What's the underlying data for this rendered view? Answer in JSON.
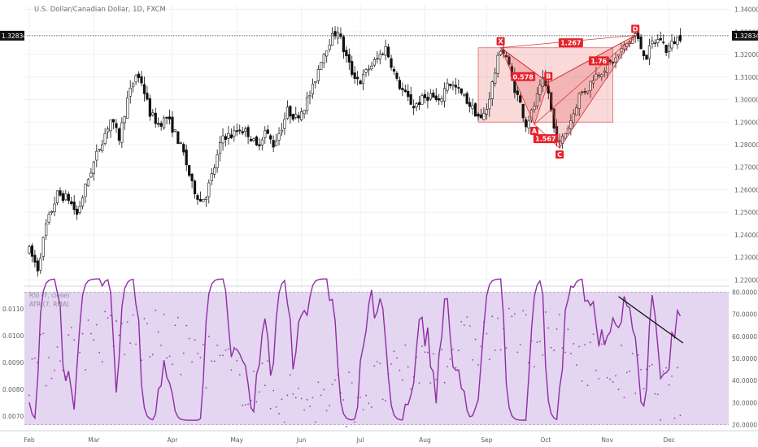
{
  "title": "U.S. Dollar/Canadian Dollar, 1D, FXCM",
  "chart_data": {
    "type": "candlestick",
    "symbol_title": "U.S. Dollar/Canadian Dollar, 1D, FXCM",
    "price_axis": {
      "ticks": [
        "1.34000",
        "1.33000",
        "1.32000",
        "1.31000",
        "1.30000",
        "1.29000",
        "1.28000",
        "1.27000",
        "1.26000",
        "1.25000",
        "1.24000",
        "1.23000",
        "1.22000"
      ],
      "ylim": [
        1.218,
        1.342
      ]
    },
    "last_price": "1.32834",
    "time_axis": [
      "Feb",
      "Mar",
      "Apr",
      "May",
      "Jun",
      "Jul",
      "Aug",
      "Sep",
      "Oct",
      "Nov",
      "Dec"
    ],
    "price_path": [
      [
        0,
        1.233
      ],
      [
        3,
        1.225
      ],
      [
        6,
        1.244
      ],
      [
        10,
        1.258
      ],
      [
        14,
        1.256
      ],
      [
        17,
        1.249
      ],
      [
        21,
        1.265
      ],
      [
        25,
        1.279
      ],
      [
        29,
        1.291
      ],
      [
        32,
        1.283
      ],
      [
        35,
        1.3
      ],
      [
        38,
        1.311
      ],
      [
        40,
        1.308
      ],
      [
        43,
        1.294
      ],
      [
        46,
        1.289
      ],
      [
        49,
        1.292
      ],
      [
        52,
        1.285
      ],
      [
        55,
        1.276
      ],
      [
        58,
        1.262
      ],
      [
        61,
        1.255
      ],
      [
        63,
        1.258
      ],
      [
        66,
        1.27
      ],
      [
        69,
        1.284
      ],
      [
        72,
        1.284
      ],
      [
        75,
        1.287
      ],
      [
        78,
        1.285
      ],
      [
        81,
        1.279
      ],
      [
        84,
        1.286
      ],
      [
        87,
        1.28
      ],
      [
        90,
        1.288
      ],
      [
        92,
        1.295
      ],
      [
        95,
        1.292
      ],
      [
        98,
        1.297
      ],
      [
        101,
        1.305
      ],
      [
        104,
        1.318
      ],
      [
        107,
        1.326
      ],
      [
        110,
        1.331
      ],
      [
        112,
        1.322
      ],
      [
        115,
        1.312
      ],
      [
        118,
        1.308
      ],
      [
        121,
        1.314
      ],
      [
        124,
        1.318
      ],
      [
        127,
        1.323
      ],
      [
        129,
        1.316
      ],
      [
        131,
        1.308
      ],
      [
        134,
        1.302
      ],
      [
        137,
        1.297
      ],
      [
        140,
        1.3
      ],
      [
        143,
        1.302
      ],
      [
        146,
        1.298
      ],
      [
        149,
        1.308
      ],
      [
        152,
        1.305
      ],
      [
        155,
        1.301
      ],
      [
        158,
        1.296
      ],
      [
        161,
        1.291
      ],
      [
        163,
        1.296
      ],
      [
        165,
        1.307
      ],
      [
        168,
        1.323
      ],
      [
        170,
        1.319
      ],
      [
        173,
        1.305
      ],
      [
        175,
        1.298
      ],
      [
        177,
        1.289
      ],
      [
        179,
        1.294
      ],
      [
        181,
        1.301
      ],
      [
        183,
        1.308
      ],
      [
        185,
        1.303
      ],
      [
        187,
        1.287
      ],
      [
        189,
        1.28
      ],
      [
        192,
        1.288
      ],
      [
        194,
        1.294
      ],
      [
        196,
        1.302
      ],
      [
        199,
        1.305
      ],
      [
        201,
        1.31
      ],
      [
        204,
        1.313
      ],
      [
        206,
        1.315
      ],
      [
        209,
        1.318
      ],
      [
        211,
        1.322
      ],
      [
        214,
        1.326
      ],
      [
        216,
        1.329
      ],
      [
        218,
        1.323
      ],
      [
        220,
        1.319
      ],
      [
        222,
        1.325
      ],
      [
        225,
        1.327
      ],
      [
        227,
        1.322
      ],
      [
        230,
        1.326
      ],
      [
        232,
        1.328
      ]
    ],
    "pattern": {
      "name": "harmonic",
      "points": [
        {
          "label": "X",
          "day": 168,
          "price": 1.323
        },
        {
          "label": "A",
          "day": 180,
          "price": 1.289
        },
        {
          "label": "B",
          "day": 185,
          "price": 1.3075
        },
        {
          "label": "C",
          "day": 189,
          "price": 1.2785
        },
        {
          "label": "D",
          "day": 216,
          "price": 1.3285
        }
      ],
      "ratios": [
        {
          "text": "0.578",
          "day": 176,
          "price": 1.31
        },
        {
          "text": "1.567",
          "day": 184,
          "price": 1.2825
        },
        {
          "text": "1.267",
          "day": 193,
          "price": 1.325
        },
        {
          "text": "1.76",
          "day": 203,
          "price": 1.317
        }
      ],
      "box": {
        "day_start": 160,
        "day_end": 208,
        "price_low": 1.29,
        "price_high": 1.323
      }
    },
    "indicators": {
      "rsi_label": "RSI (7, close)",
      "atr_label": "ATR (7, RMA)",
      "rsi_axis_ticks": [
        "80.0000",
        "70.0000",
        "60.0000",
        "50.0000",
        "40.0000",
        "30.0000",
        "20.0000"
      ],
      "rsi_ylim": [
        18,
        82
      ],
      "rsi_band": [
        20,
        80
      ],
      "atr_axis_ticks": [
        "0.0110",
        "0.0100",
        "0.0090",
        "0.0080",
        "0.0070"
      ],
      "atr_ylim": [
        0.00652,
        0.01178
      ],
      "trendline": {
        "start": {
          "day": 210,
          "rsi": 78
        },
        "end": {
          "day": 233,
          "rsi": 57
        }
      }
    }
  }
}
